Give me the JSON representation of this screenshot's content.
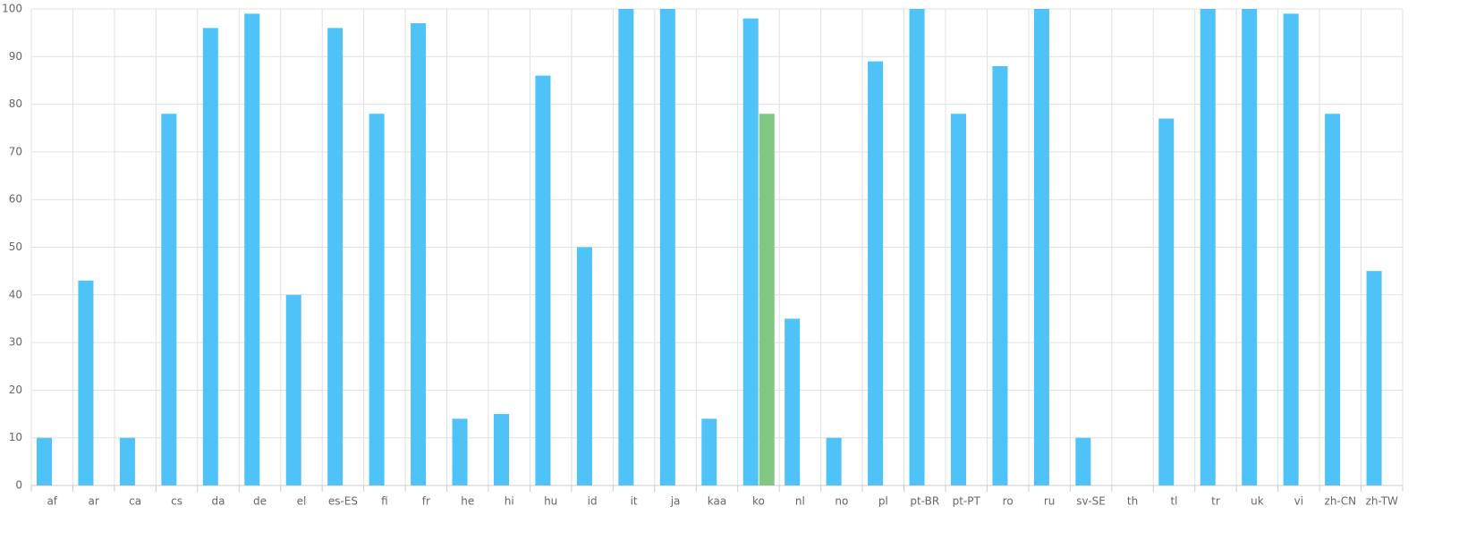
{
  "chart_data": {
    "type": "bar",
    "categories": [
      "af",
      "ar",
      "ca",
      "cs",
      "da",
      "de",
      "el",
      "es-ES",
      "fi",
      "fr",
      "he",
      "hi",
      "hu",
      "id",
      "it",
      "ja",
      "kaa",
      "ko",
      "nl",
      "no",
      "pl",
      "pt-BR",
      "pt-PT",
      "ro",
      "ru",
      "sv-SE",
      "th",
      "tl",
      "tr",
      "uk",
      "vi",
      "zh-CN",
      "zh-TW"
    ],
    "series": [
      {
        "color": "#4fc3f7",
        "values": [
          10,
          43,
          10,
          78,
          96,
          99,
          40,
          96,
          78,
          97,
          14,
          15,
          86,
          50,
          100,
          100,
          14,
          98,
          35,
          10,
          89,
          100,
          78,
          88,
          100,
          10,
          0,
          77,
          100,
          100,
          99,
          78,
          45
        ]
      },
      {
        "color": "#81c784",
        "values": [
          null,
          null,
          null,
          null,
          null,
          null,
          null,
          null,
          null,
          null,
          null,
          null,
          null,
          null,
          null,
          null,
          null,
          78,
          null,
          null,
          null,
          null,
          null,
          null,
          null,
          null,
          null,
          null,
          null,
          null,
          null,
          null,
          null
        ]
      }
    ],
    "ylim": [
      0,
      100
    ],
    "yticks": [
      0,
      10,
      20,
      30,
      40,
      50,
      60,
      70,
      80,
      90,
      100
    ],
    "grid": true
  }
}
